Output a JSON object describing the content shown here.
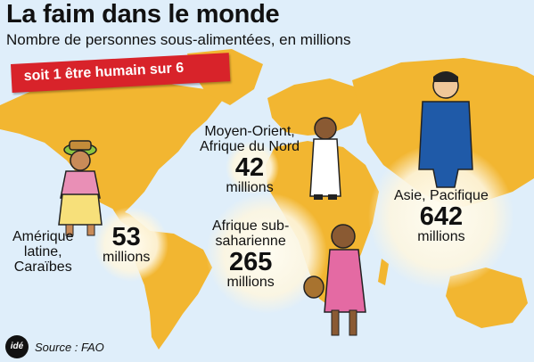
{
  "header": {
    "title": "La faim dans le monde",
    "subtitle": "Nombre de personnes sous-alimentées, en millions",
    "banner": "soit 1 être humain sur 6"
  },
  "chart_data": {
    "type": "bubble-map",
    "title": "La faim dans le monde",
    "subtitle": "Nombre de personnes sous-alimentées, en millions",
    "unit": "millions",
    "regions": [
      {
        "name": "Amérique latine, Caraïbes",
        "lines": [
          "Amérique",
          "latine,",
          "Caraïbes"
        ],
        "value": 53
      },
      {
        "name": "Moyen-Orient, Afrique du Nord",
        "lines": [
          "Moyen-Orient,",
          "Afrique du Nord"
        ],
        "value": 42
      },
      {
        "name": "Afrique sub-saharienne",
        "lines": [
          "Afrique sub-",
          "saharienne"
        ],
        "value": 265
      },
      {
        "name": "Asie, Pacifique",
        "lines": [
          "Asie, Pacifique"
        ],
        "value": 642
      }
    ]
  },
  "footer": {
    "logo": "idé",
    "source": "Source : FAO"
  },
  "colors": {
    "land": "#f2b631",
    "sea": "#dfeefa",
    "banner": "#d8232a",
    "bubble": "#fdf5dc"
  }
}
